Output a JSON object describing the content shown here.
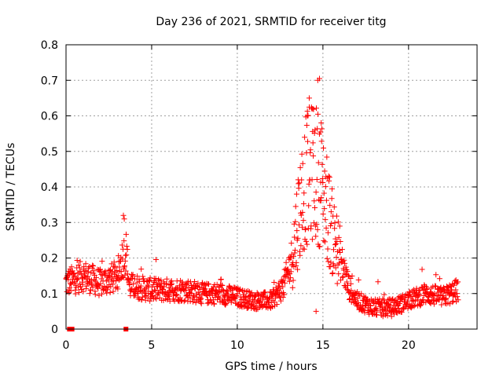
{
  "chart_data": {
    "type": "scatter",
    "title": "Day 236 of 2021, SRMTID for receiver titg",
    "xlabel": "GPS time / hours",
    "ylabel": "SRMTID / TECUs",
    "xlim": [
      0,
      24
    ],
    "ylim": [
      0,
      0.8
    ],
    "x_ticks": [
      0,
      5,
      10,
      15,
      20
    ],
    "x_tick_labels": [
      "0",
      "5",
      "10",
      "15",
      "20"
    ],
    "y_ticks": [
      0,
      0.1,
      0.2,
      0.3,
      0.4,
      0.5,
      0.6,
      0.7,
      0.8
    ],
    "y_tick_labels": [
      "0",
      "0.1",
      "0.2",
      "0.3",
      "0.4",
      "0.5",
      "0.6",
      "0.7",
      "0.8"
    ],
    "grid": true,
    "marker": "+",
    "color": "#ff0000",
    "series": [
      {
        "name": "SRMTID",
        "x_range": [
          0,
          22.9
        ],
        "profile": [
          [
            0,
            0.13
          ],
          [
            0.5,
            0.14
          ],
          [
            1.0,
            0.15
          ],
          [
            1.5,
            0.14
          ],
          [
            2.0,
            0.13
          ],
          [
            2.5,
            0.14
          ],
          [
            3.0,
            0.15
          ],
          [
            3.3,
            0.2
          ],
          [
            3.5,
            0.22
          ],
          [
            3.7,
            0.12
          ],
          [
            4.0,
            0.12
          ],
          [
            5.0,
            0.11
          ],
          [
            6.0,
            0.11
          ],
          [
            7.0,
            0.11
          ],
          [
            8.0,
            0.1
          ],
          [
            9.0,
            0.1
          ],
          [
            10.0,
            0.09
          ],
          [
            11.0,
            0.08
          ],
          [
            12.0,
            0.08
          ],
          [
            12.7,
            0.12
          ],
          [
            13.2,
            0.2
          ],
          [
            13.6,
            0.33
          ],
          [
            14.0,
            0.42
          ],
          [
            14.5,
            0.45
          ],
          [
            15.0,
            0.4
          ],
          [
            15.5,
            0.28
          ],
          [
            16.0,
            0.2
          ],
          [
            16.5,
            0.12
          ],
          [
            17.0,
            0.08
          ],
          [
            18.0,
            0.06
          ],
          [
            19.0,
            0.06
          ],
          [
            20.0,
            0.08
          ],
          [
            21.0,
            0.1
          ],
          [
            22.0,
            0.09
          ],
          [
            22.9,
            0.11
          ]
        ],
        "highlights": [
          {
            "x": 14.7,
            "y": 0.7
          },
          {
            "x": 14.8,
            "y": 0.705
          },
          {
            "x": 14.2,
            "y": 0.65
          },
          {
            "x": 14.4,
            "y": 0.62
          },
          {
            "x": 3.35,
            "y": 0.32
          },
          {
            "x": 3.4,
            "y": 0.31
          },
          {
            "x": 14.1,
            "y": 0.6
          },
          {
            "x": 14.9,
            "y": 0.58
          },
          {
            "x": 14.6,
            "y": 0.05
          }
        ],
        "zero_markers": [
          {
            "x": 0.2,
            "y": 0
          },
          {
            "x": 0.35,
            "y": 0
          },
          {
            "x": 3.5,
            "y": 0
          }
        ]
      }
    ]
  }
}
